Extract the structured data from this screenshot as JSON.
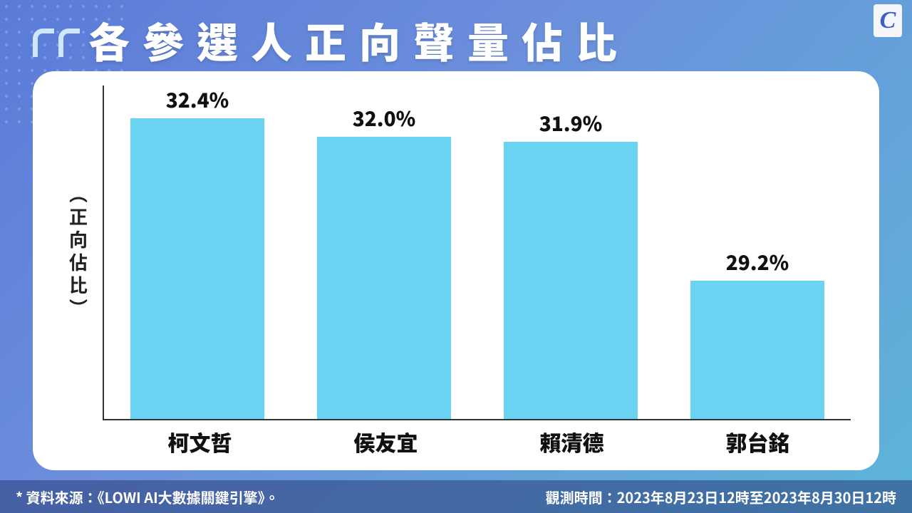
{
  "title": "各參選人正向聲量佔比",
  "logo_letter": "C",
  "chart": {
    "type": "bar",
    "ylabel": "（正向佔比）",
    "categories": [
      "柯文哲",
      "侯友宜",
      "賴清德",
      "郭台銘"
    ],
    "values": [
      32.4,
      32.0,
      31.9,
      29.2
    ],
    "value_labels": [
      "32.4%",
      "32.0%",
      "31.9%",
      "29.2%"
    ],
    "bar_color": "#6bd3f2",
    "axis_color": "#333333",
    "background_color": "#ffffff",
    "value_fontsize": 28,
    "category_fontsize": 30,
    "ylabel_fontsize": 26,
    "title_fontsize": 58,
    "bar_width_ratio": 0.72,
    "y_display_min": 26.5,
    "y_display_max": 33.0,
    "card_border_radius": 30
  },
  "footer": {
    "source": "* 資料來源：《LOWI AI大數據關鍵引擎》。",
    "observation": "觀測時間：2023年8月23日12時至2023年8月30日12時"
  },
  "palette": {
    "bg_gradient_from": "#5a7bd8",
    "bg_gradient_mid": "#6b8fdc",
    "bg_gradient_to": "#5db5d8",
    "title_color": "#ffffff",
    "quote_icon_color": "#cfe6ff",
    "text_color": "#111111",
    "footer_bg": "rgba(40,60,120,0.55)",
    "logo_bg": "#f4f6fb",
    "logo_fg": "#3a5fc8"
  }
}
